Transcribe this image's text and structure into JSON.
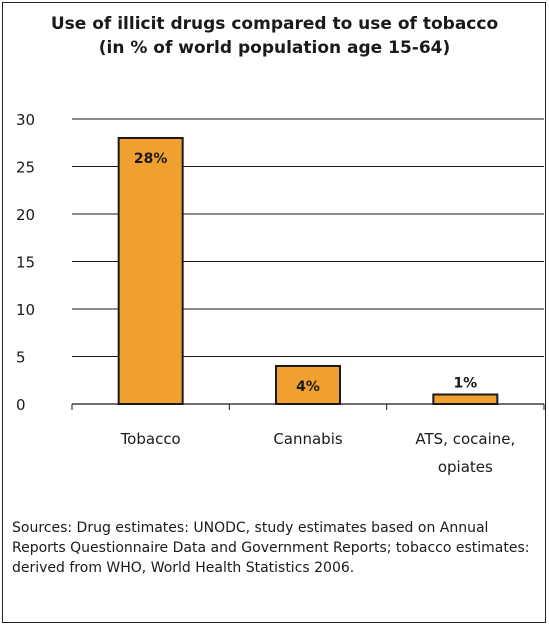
{
  "chart_data": {
    "type": "bar",
    "title": [
      "Use of illicit drugs compared to use of tobacco",
      "(in % of world population age 15-64)"
    ],
    "categories": [
      [
        "Tobacco"
      ],
      [
        "Cannabis"
      ],
      [
        "ATS, cocaine,",
        "opiates"
      ]
    ],
    "values": [
      28,
      4,
      1
    ],
    "data_labels": [
      "28%",
      "4%",
      "1%"
    ],
    "ylim": [
      0,
      30
    ],
    "yticks": [
      "0",
      "5",
      "10",
      "15",
      "20",
      "25",
      "30"
    ],
    "grid": true,
    "bar_color": "#f0a030",
    "bar_edge_color": "#1a1a1a",
    "xlabel": "",
    "ylabel": ""
  },
  "source": "Sources: Drug estimates: UNODC, study estimates based on Annual Reports Questionnaire Data and Government Reports; tobacco estimates: derived from WHO,  World Health Statistics 2006."
}
